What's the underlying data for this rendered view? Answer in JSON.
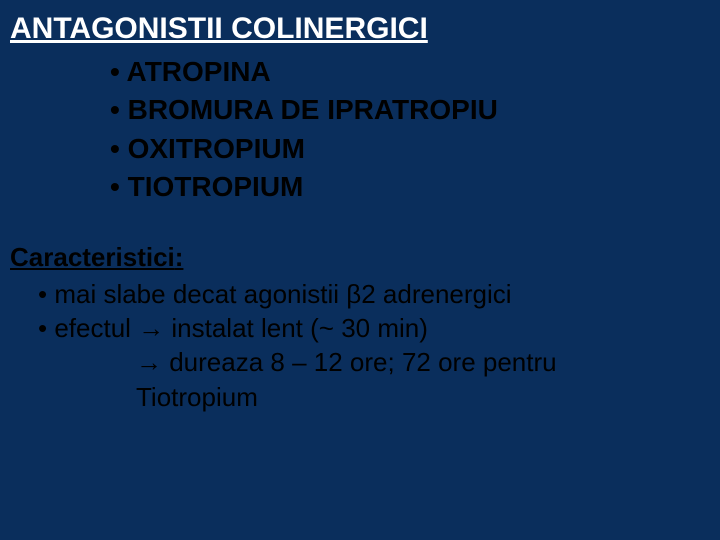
{
  "background_color": "#0a2e5c",
  "text_colors": {
    "title": "#ffffff",
    "body": "#000000"
  },
  "font_family": "Arial",
  "title": "ANTAGONISTII COLINERGICI",
  "title_fontsize": 30,
  "drug_list": {
    "fontsize": 28,
    "fontweight": "bold",
    "items": [
      "ATROPINA",
      "BROMURA DE IPRATROPIU",
      "OXITROPIUM",
      "TIOTROPIUM"
    ]
  },
  "characteristics": {
    "heading": "Caracteristici",
    "heading_fontsize": 26,
    "body_fontsize": 26,
    "lines": {
      "l1": "• mai slabe decat agonistii β2 adrenergici",
      "l2": "• efectul  → instalat lent (~ 30 min)",
      "l3": "→ dureaza 8 – 12 ore; 72 ore pentru",
      "l4": "Tiotropium"
    }
  }
}
